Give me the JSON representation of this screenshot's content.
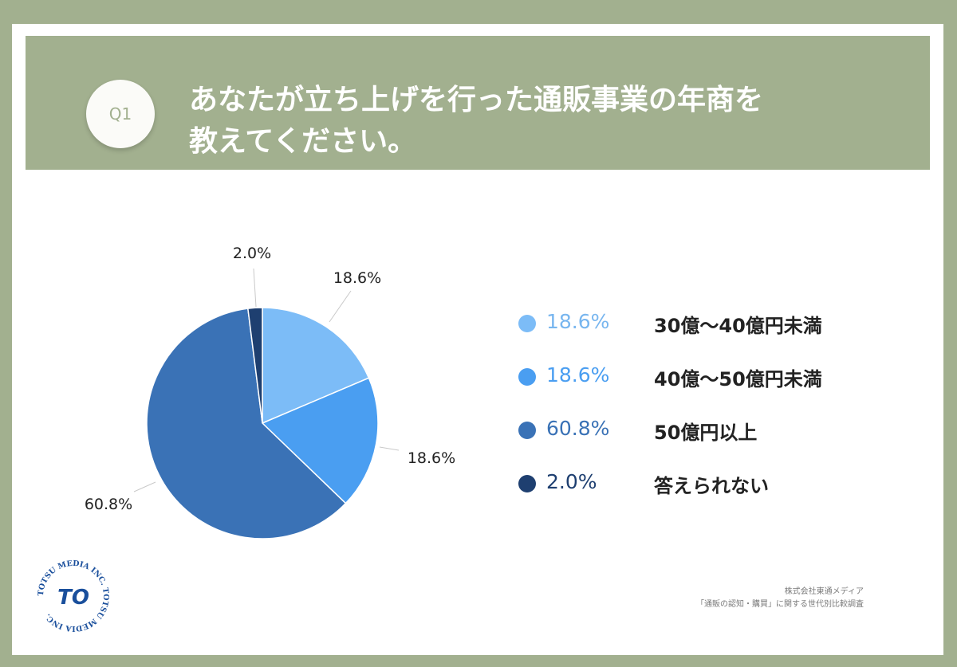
{
  "header": {
    "badge": "Q1",
    "title_line1": "あなたが立ち上げを行った通販事業の年商を",
    "title_line2": "教えてください。"
  },
  "colors": {
    "background": "#a2b08f",
    "card": "#ffffff",
    "series": [
      "#7cbcf7",
      "#4a9ef1",
      "#3a72b6",
      "#1e3f70"
    ]
  },
  "chart_data": {
    "type": "pie",
    "title": "",
    "slices": [
      {
        "label": "30億〜40億円未満",
        "value": 18.6,
        "display": "18.6%"
      },
      {
        "label": "40億〜50億円未満",
        "value": 18.6,
        "display": "18.6%"
      },
      {
        "label": "50億円以上",
        "value": 60.8,
        "display": "60.8%"
      },
      {
        "label": "答えられない",
        "value": 2.0,
        "display": "2.0%"
      }
    ],
    "legend_placement": "right"
  },
  "legend": [
    {
      "pct": "18.6%",
      "label": "30億〜40億円未満"
    },
    {
      "pct": "18.6%",
      "label": "40億〜50億円未満"
    },
    {
      "pct": "60.8%",
      "label": "50億円以上"
    },
    {
      "pct": "2.0%",
      "label": "答えられない"
    }
  ],
  "footer": {
    "line1": "株式会社東通メディア",
    "line2": "「通販の認知・購買」に関する世代別比較調査"
  },
  "logo": {
    "ring_text": "TOTSU MEDIA INC. TOTSU MEDIA INC.",
    "mark": "TO"
  }
}
